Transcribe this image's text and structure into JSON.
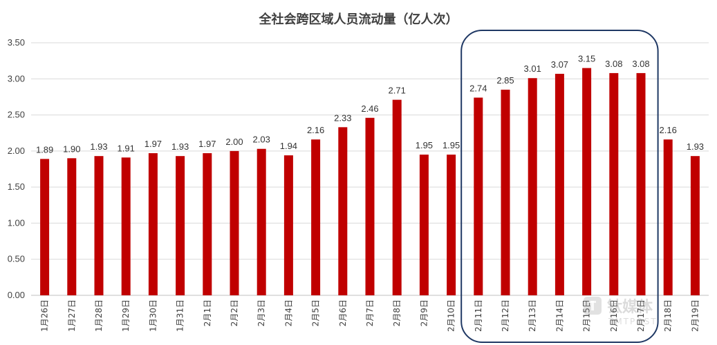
{
  "chart_data": {
    "type": "bar",
    "title": "全社会跨区域人员流动量（亿人次）",
    "categories": [
      "1月26日",
      "1月27日",
      "1月28日",
      "1月29日",
      "1月30日",
      "1月31日",
      "2月1日",
      "2月2日",
      "2月3日",
      "2月4日",
      "2月5日",
      "2月6日",
      "2月7日",
      "2月8日",
      "2月9日",
      "2月10日",
      "2月11日",
      "2月12日",
      "2月13日",
      "2月14日",
      "2月15日",
      "2月16日",
      "2月17日",
      "2月18日",
      "2月19日"
    ],
    "values": [
      1.89,
      1.9,
      1.93,
      1.91,
      1.97,
      1.93,
      1.97,
      2.0,
      2.03,
      1.94,
      2.16,
      2.33,
      2.46,
      2.71,
      1.95,
      1.95,
      2.74,
      2.85,
      3.01,
      3.07,
      3.15,
      3.08,
      3.08,
      2.16,
      1.93
    ],
    "value_labels": [
      "1.89",
      "1.90",
      "1.93",
      "1.91",
      "1.97",
      "1.93",
      "1.97",
      "2.00",
      "2.03",
      "1.94",
      "2.16",
      "2.33",
      "2.46",
      "2.71",
      "1.95",
      "1.95",
      "2.74",
      "2.85",
      "3.01",
      "3.07",
      "3.15",
      "3.08",
      "3.08",
      "2.16",
      "1.93"
    ],
    "ylim": [
      0,
      3.5
    ],
    "yticks": [
      "0.00",
      "0.50",
      "1.00",
      "1.50",
      "2.00",
      "2.50",
      "3.00",
      "3.50"
    ],
    "grid": true,
    "legend": "none",
    "bar_color": "#c00000",
    "highlight_color": "#1f3864",
    "highlight_range": [
      "2月11日",
      "2月17日"
    ],
    "xlabel": "",
    "ylabel": ""
  },
  "watermark": {
    "text": "钛媒体",
    "sub": "TMTPOST"
  }
}
